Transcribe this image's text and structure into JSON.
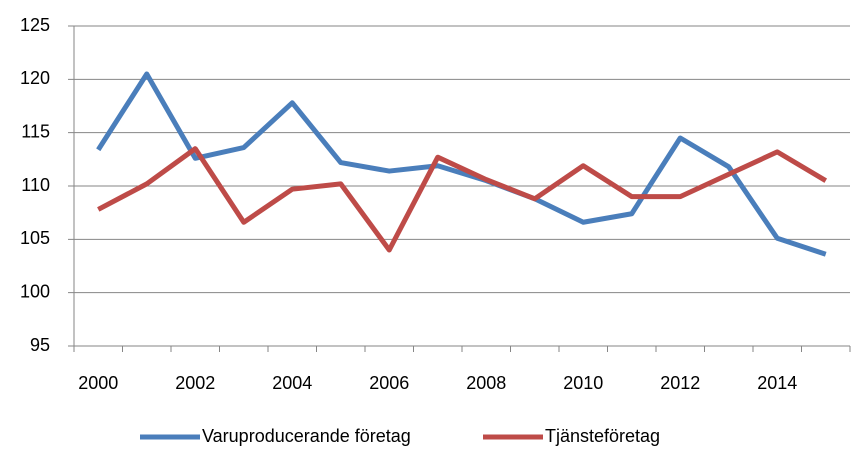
{
  "chart_data": {
    "type": "line",
    "categories": [
      "2000",
      null,
      "2002",
      null,
      "2004",
      null,
      "2006",
      null,
      "2008",
      null,
      "2010",
      null,
      "2012",
      null,
      "2014",
      null
    ],
    "series": [
      {
        "name": "Varuproducerande företag",
        "color": "#4a7ebb",
        "values": [
          113.4,
          120.5,
          112.6,
          113.6,
          117.8,
          112.2,
          111.4,
          111.9,
          110.5,
          108.8,
          106.6,
          107.4,
          114.5,
          111.8,
          105.1,
          103.6
        ]
      },
      {
        "name": "Tjänsteföretag",
        "color": "#be4b48",
        "values": [
          107.8,
          110.2,
          113.5,
          106.6,
          109.7,
          110.2,
          104.0,
          112.7,
          110.6,
          108.8,
          111.9,
          109.0,
          109.0,
          111.1,
          113.2,
          110.5
        ]
      }
    ],
    "ylim": [
      95,
      125
    ],
    "yticks": [
      95,
      100,
      105,
      110,
      115,
      120,
      125
    ],
    "grid": true,
    "legend": "bottom"
  }
}
